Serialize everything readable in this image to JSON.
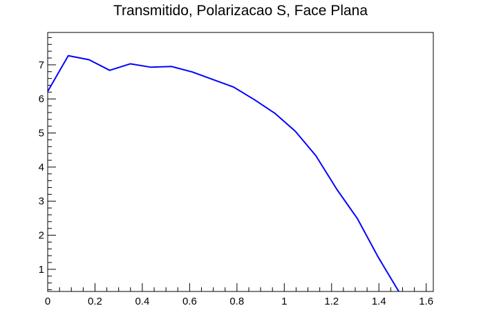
{
  "chart_data": {
    "type": "line",
    "title": "Transmitido, Polarizacao S, Face Plana",
    "xlabel": "",
    "ylabel": "",
    "xlim": [
      0,
      1.63
    ],
    "ylim": [
      0.35,
      7.95
    ],
    "x_ticks": [
      0,
      0.2,
      0.4,
      0.6,
      0.8,
      1,
      1.2,
      1.4,
      1.6
    ],
    "x_tick_labels": [
      "0",
      "0.2",
      "0.4",
      "0.6",
      "0.8",
      "1",
      "1.2",
      "1.4",
      "1.6"
    ],
    "y_ticks": [
      1,
      2,
      3,
      4,
      5,
      6,
      7
    ],
    "y_tick_labels": [
      "1",
      "2",
      "3",
      "4",
      "5",
      "6",
      "7"
    ],
    "grid": false,
    "series": [
      {
        "color": "#0000ff",
        "x": [
          0,
          0.087,
          0.175,
          0.262,
          0.349,
          0.436,
          0.524,
          0.611,
          0.698,
          0.785,
          0.873,
          0.96,
          1.047,
          1.134,
          1.222,
          1.309,
          1.396,
          1.484
        ],
        "y": [
          6.22,
          7.27,
          7.15,
          6.84,
          7.03,
          6.93,
          6.95,
          6.79,
          6.57,
          6.35,
          5.98,
          5.58,
          5.05,
          4.33,
          3.35,
          2.49,
          1.37,
          0.35
        ]
      }
    ]
  }
}
